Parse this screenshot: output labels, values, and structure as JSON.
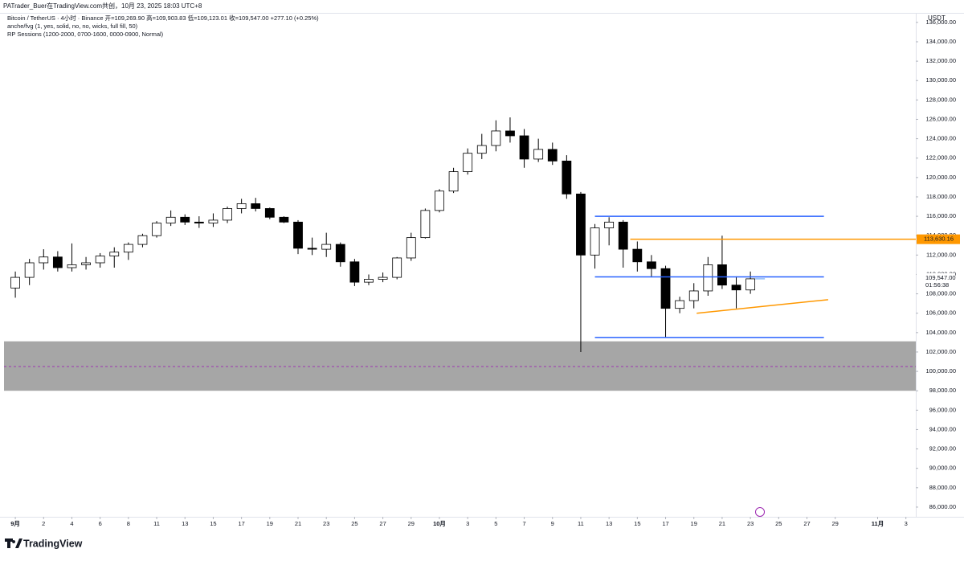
{
  "header": {
    "attribution": "PATrader_Buer在TradingView.com共创，10月 23, 2025 18:03 UTC+8"
  },
  "chart_data": {
    "type": "candlestick",
    "title": "Bitcoin / TetherUS · 4小时 · Binance  开=109,269.90  高=109,903.83  低=109,123.01  收=109,547.00  +277.10 (+0.25%)",
    "indicators": [
      "anche/fvg (1, yes, solid, no, no, wicks, full fill, 50)",
      "RP Sessions (1200-2000, 0700-1600, 0000-0900, Normal)"
    ],
    "currency": "USDT",
    "x": [
      0,
      1,
      2,
      3,
      4,
      5,
      6,
      7,
      8,
      9,
      10,
      11,
      12,
      13,
      14,
      15,
      16,
      17,
      18,
      19,
      20,
      21,
      22,
      23,
      24,
      25,
      26,
      27,
      28,
      29,
      30,
      31,
      32,
      33,
      34,
      35,
      36,
      37,
      38,
      39,
      40,
      41,
      42,
      43,
      44,
      45,
      46,
      47,
      48,
      49,
      50,
      51,
      52
    ],
    "open": [
      108600,
      109700,
      111200,
      111800,
      110700,
      111000,
      111200,
      111900,
      112300,
      113100,
      114000,
      115300,
      115900,
      115400,
      115300,
      115600,
      116800,
      117300,
      116800,
      115900,
      115400,
      112700,
      112600,
      113100,
      111300,
      109200,
      109500,
      109700,
      111700,
      113800,
      116600,
      118600,
      120600,
      122500,
      123300,
      124800,
      124300,
      121900,
      122900,
      121700,
      118300,
      112000,
      114800,
      115400,
      112600,
      111300,
      110600,
      106500,
      107300,
      108300,
      111000,
      108900,
      108400
    ],
    "high": [
      110300,
      111600,
      112600,
      112400,
      113200,
      111800,
      112200,
      112800,
      113300,
      114200,
      115500,
      116600,
      116200,
      116000,
      116300,
      117000,
      117800,
      117900,
      116900,
      116000,
      115600,
      113800,
      114300,
      113300,
      111600,
      110000,
      110200,
      111800,
      114300,
      116800,
      118800,
      121000,
      123000,
      124500,
      125900,
      126200,
      125000,
      124000,
      123600,
      122300,
      118500,
      115200,
      115900,
      115600,
      113400,
      112000,
      110900,
      107700,
      109100,
      111800,
      114000,
      109800,
      110300
    ],
    "low": [
      107600,
      108900,
      110500,
      110300,
      110300,
      110500,
      110700,
      110700,
      111500,
      112800,
      113800,
      115000,
      115100,
      114800,
      114900,
      115300,
      116300,
      116500,
      115700,
      115300,
      112100,
      112000,
      111800,
      110800,
      108800,
      108900,
      109200,
      109500,
      111400,
      113700,
      116400,
      118400,
      120300,
      121900,
      122700,
      123600,
      121000,
      121600,
      121300,
      117800,
      102000,
      110600,
      113000,
      110700,
      110300,
      109700,
      103500,
      106000,
      106500,
      107800,
      108500,
      106500,
      108000
    ],
    "close": [
      109700,
      111200,
      111800,
      110700,
      111000,
      111200,
      111900,
      112300,
      113100,
      114000,
      115300,
      115900,
      115400,
      115300,
      115600,
      116800,
      117300,
      116800,
      115900,
      115400,
      112700,
      112600,
      113100,
      111300,
      109200,
      109500,
      109700,
      111700,
      113800,
      116600,
      118600,
      120600,
      122500,
      123300,
      124800,
      124300,
      121900,
      122900,
      121700,
      118300,
      112000,
      114800,
      115400,
      112600,
      111300,
      110600,
      106500,
      107300,
      108300,
      111000,
      108900,
      108400,
      109547
    ],
    "up_color": "#ffffff",
    "down_color": "#000000",
    "edge_color": "#000000",
    "xlim": [
      -0.8,
      63.7
    ],
    "xticks": [
      {
        "value": 0,
        "label": "9月"
      },
      2,
      4,
      6,
      8,
      {
        "value": 10,
        "label": "11"
      },
      {
        "value": 12,
        "label": "13"
      },
      {
        "value": 14,
        "label": "15"
      },
      {
        "value": 16,
        "label": "17"
      },
      {
        "value": 18,
        "label": "19"
      },
      {
        "value": 20,
        "label": "21"
      },
      {
        "value": 22,
        "label": "23"
      },
      {
        "value": 24,
        "label": "25"
      },
      {
        "value": 26,
        "label": "27"
      },
      {
        "value": 28,
        "label": "29"
      },
      {
        "value": 30,
        "label": "10月"
      },
      {
        "value": 32,
        "label": "3"
      },
      {
        "value": 34,
        "label": "5"
      },
      {
        "value": 36,
        "label": "7"
      },
      {
        "value": 38,
        "label": "9"
      },
      {
        "value": 40,
        "label": "11"
      },
      {
        "value": 42,
        "label": "13"
      },
      {
        "value": 44,
        "label": "15"
      },
      {
        "value": 46,
        "label": "17"
      },
      {
        "value": 48,
        "label": "19"
      },
      {
        "value": 50,
        "label": "21"
      },
      {
        "value": 52,
        "label": "23"
      },
      {
        "value": 54,
        "label": "25"
      },
      {
        "value": 56,
        "label": "27"
      },
      {
        "value": 58,
        "label": "29"
      },
      {
        "value": 61,
        "label": "11月"
      },
      {
        "value": 63,
        "label": "3"
      }
    ],
    "ylim": [
      85000,
      136900
    ],
    "yticks": [
      {
        "value": 86000,
        "label": "86,000.00"
      },
      {
        "value": 88000,
        "label": "88,000.00"
      },
      {
        "value": 90000,
        "label": "90,000.00"
      },
      {
        "value": 92000,
        "label": "92,000.00"
      },
      {
        "value": 94000,
        "label": "94,000.00"
      },
      {
        "value": 96000,
        "label": "96,000.00"
      },
      {
        "value": 98000,
        "label": "98,000.00"
      },
      {
        "value": 100000,
        "label": "100,000.00"
      },
      {
        "value": 102000,
        "label": "102,000.00"
      },
      {
        "value": 104000,
        "label": "104,000.00"
      },
      {
        "value": 106000,
        "label": "106,000.00"
      },
      {
        "value": 108000,
        "label": "108,000.00"
      },
      {
        "value": 110000,
        "label": "110,000.00"
      },
      {
        "value": 112000,
        "label": "112,000.00"
      },
      {
        "value": 114000,
        "label": "114,000.00"
      },
      {
        "value": 116000,
        "label": "116,000.00"
      },
      {
        "value": 118000,
        "label": "118,000.00"
      },
      {
        "value": 120000,
        "label": "120,000.00"
      },
      {
        "value": 122000,
        "label": "122,000.00"
      },
      {
        "value": 124000,
        "label": "124,000.00"
      },
      {
        "value": 126000,
        "label": "126,000.00"
      },
      {
        "value": 128000,
        "label": "128,000.00"
      },
      {
        "value": 130000,
        "label": "130,000.00"
      },
      {
        "value": 132000,
        "label": "132,000.00"
      },
      {
        "value": 134000,
        "label": "134,000.00"
      },
      {
        "value": 136000,
        "label": "136,000.00"
      }
    ],
    "zone": {
      "y": [
        98000,
        103100
      ],
      "x": [
        -0.8,
        63.7
      ],
      "color": "#a6a6a6",
      "mid": 100500,
      "mid_color": "#9c27b0"
    },
    "levels": [
      {
        "y": [
          116000,
          116000
        ],
        "x": [
          41,
          57.2
        ],
        "color": "#2962ff"
      },
      {
        "y": [
          109750,
          109750
        ],
        "x": [
          41,
          57.2
        ],
        "color": "#2962ff"
      },
      {
        "y": [
          103500,
          103500
        ],
        "x": [
          41,
          57.2
        ],
        "color": "#2962ff"
      },
      {
        "y": [
          113630.16,
          113630.16
        ],
        "x": [
          43.5,
          63.7
        ],
        "color": "#ff9800",
        "value_label": "113,630.16"
      },
      {
        "y": [
          106000,
          107400
        ],
        "x": [
          48.2,
          57.5
        ],
        "color": "#ff9800"
      }
    ],
    "last_price": {
      "value": 109547,
      "value_label": "109,547.00",
      "countdown": "01:56:38"
    }
  },
  "footer": {
    "logo": "TradingView"
  }
}
